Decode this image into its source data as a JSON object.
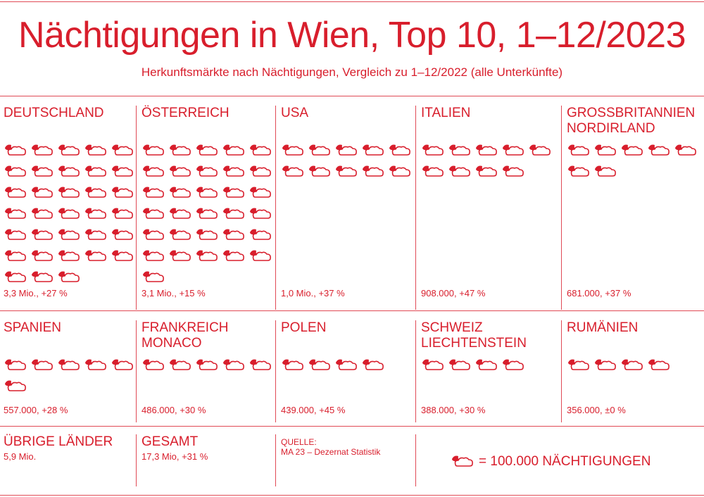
{
  "title": "Nächtigungen in Wien, Top 10, 1–12/2023",
  "subtitle": "Herkunftsmärkte nach Nächtigungen, Vergleich zu 1–12/2022 (alle Unterkünfte)",
  "colors": {
    "accent": "#d81e2c",
    "rule": "#e04a55"
  },
  "icon_name": "moon-cloud-icon",
  "chart_data": {
    "type": "pictogram",
    "unit_per_icon": 100000,
    "categories": [
      "DEUTSCHLAND",
      "ÖSTERREICH",
      "USA",
      "ITALIEN",
      "GROSSBRITANNIEN NORDIRLAND",
      "SPANIEN",
      "FRANKREICH MONACO",
      "POLEN",
      "SCHWEIZ LIECHTENSTEIN",
      "RUMÄNIEN"
    ],
    "items": [
      {
        "name_lines": [
          "DEUTSCHLAND"
        ],
        "icons": 33,
        "value": 3300000,
        "label": "3,3 Mio., +27 %"
      },
      {
        "name_lines": [
          "ÖSTERREICH"
        ],
        "icons": 31,
        "value": 3100000,
        "label": "3,1 Mio., +15 %"
      },
      {
        "name_lines": [
          "USA"
        ],
        "icons": 10,
        "value": 1000000,
        "label": "1,0 Mio., +37 %"
      },
      {
        "name_lines": [
          "ITALIEN"
        ],
        "icons": 9,
        "value": 908000,
        "label": "908.000, +47 %"
      },
      {
        "name_lines": [
          "GROSSBRITANNIEN",
          "NORDIRLAND"
        ],
        "icons": 7,
        "value": 681000,
        "label": "681.000, +37 %"
      },
      {
        "name_lines": [
          "SPANIEN"
        ],
        "icons": 6,
        "value": 557000,
        "label": "557.000, +28 %"
      },
      {
        "name_lines": [
          "FRANKREICH",
          "MONACO"
        ],
        "icons": 5,
        "value": 486000,
        "label": "486.000, +30 %"
      },
      {
        "name_lines": [
          "POLEN"
        ],
        "icons": 4,
        "value": 439000,
        "label": "439.000, +45 %"
      },
      {
        "name_lines": [
          "SCHWEIZ",
          "LIECHTENSTEIN"
        ],
        "icons": 4,
        "value": 388000,
        "label": "388.000, +30 %"
      },
      {
        "name_lines": [
          "RUMÄNIEN"
        ],
        "icons": 4,
        "value": 356000,
        "label": "356.000, ±0 %"
      }
    ]
  },
  "others": {
    "label": "ÜBRIGE LÄNDER",
    "value": "5,9 Mio."
  },
  "total": {
    "label": "GESAMT",
    "value": "17,3 Mio, +31 %"
  },
  "source": {
    "label": "QUELLE:",
    "value": "MA 23 – Dezernat Statistik"
  },
  "legend": {
    "text": "= 100.000 NÄCHTIGUNGEN"
  }
}
